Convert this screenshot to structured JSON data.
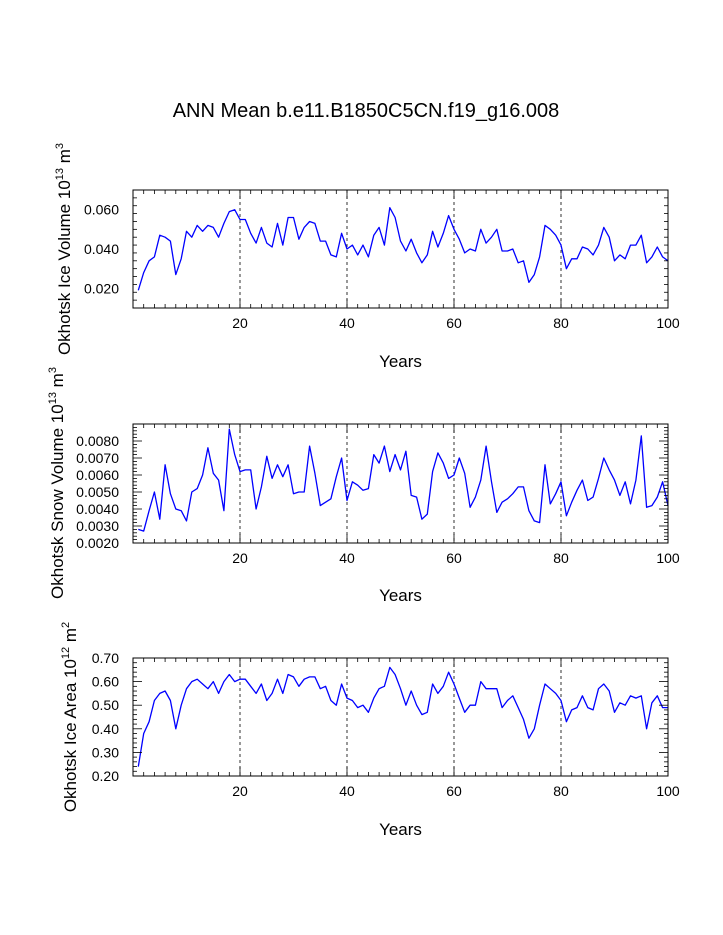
{
  "chart_data": {
    "type": "line",
    "title": "ANN Mean b.e11.B1850C5CN.f19_g16.008",
    "line_color": "#0000ff",
    "panels": [
      {
        "name": "ice-volume",
        "ylabel_main": "Okhotsk Ice Volume 10",
        "ylabel_exp": "13",
        "ylabel_unit": " m",
        "ylabel_unit_exp": "3",
        "xlabel": "Years",
        "xlim": [
          0,
          100
        ],
        "ylim": [
          0.01,
          0.07
        ],
        "xticks": [
          20,
          40,
          60,
          80,
          100
        ],
        "xtick_labels": [
          "20",
          "40",
          "60",
          "80",
          "100"
        ],
        "yticks": [
          0.02,
          0.04,
          0.06
        ],
        "ytick_labels": [
          "0.020",
          "0.040",
          "0.060"
        ],
        "grid_x": [
          20,
          40,
          60,
          80
        ],
        "x": [
          1,
          2,
          3,
          4,
          5,
          6,
          7,
          8,
          9,
          10,
          11,
          12,
          13,
          14,
          15,
          16,
          17,
          18,
          19,
          20,
          21,
          22,
          23,
          24,
          25,
          26,
          27,
          28,
          29,
          30,
          31,
          32,
          33,
          34,
          35,
          36,
          37,
          38,
          39,
          40,
          41,
          42,
          43,
          44,
          45,
          46,
          47,
          48,
          49,
          50,
          51,
          52,
          53,
          54,
          55,
          56,
          57,
          58,
          59,
          60,
          61,
          62,
          63,
          64,
          65,
          66,
          67,
          68,
          69,
          70,
          71,
          72,
          73,
          74,
          75,
          76,
          77,
          78,
          79,
          80,
          81,
          82,
          83,
          84,
          85,
          86,
          87,
          88,
          89,
          90,
          91,
          92,
          93,
          94,
          95,
          96,
          97,
          98,
          99,
          100
        ],
        "values": [
          0.019,
          0.028,
          0.034,
          0.036,
          0.047,
          0.046,
          0.044,
          0.027,
          0.035,
          0.049,
          0.046,
          0.052,
          0.049,
          0.052,
          0.051,
          0.046,
          0.053,
          0.059,
          0.06,
          0.055,
          0.055,
          0.048,
          0.043,
          0.051,
          0.043,
          0.041,
          0.053,
          0.042,
          0.056,
          0.056,
          0.045,
          0.051,
          0.054,
          0.053,
          0.044,
          0.044,
          0.037,
          0.036,
          0.048,
          0.04,
          0.042,
          0.037,
          0.042,
          0.036,
          0.047,
          0.051,
          0.042,
          0.061,
          0.056,
          0.044,
          0.039,
          0.045,
          0.038,
          0.033,
          0.037,
          0.049,
          0.041,
          0.048,
          0.057,
          0.05,
          0.045,
          0.038,
          0.04,
          0.039,
          0.05,
          0.043,
          0.046,
          0.05,
          0.039,
          0.039,
          0.04,
          0.033,
          0.034,
          0.023,
          0.027,
          0.036,
          0.052,
          0.05,
          0.047,
          0.042,
          0.03,
          0.035,
          0.035,
          0.041,
          0.04,
          0.037,
          0.042,
          0.051,
          0.046,
          0.034,
          0.037,
          0.035,
          0.042,
          0.042,
          0.047,
          0.033,
          0.036,
          0.041,
          0.036,
          0.034
        ]
      },
      {
        "name": "snow-volume",
        "ylabel_main": "Okhotsk Snow Volume 10",
        "ylabel_exp": "13",
        "ylabel_unit": " m",
        "ylabel_unit_exp": "3",
        "xlabel": "Years",
        "xlim": [
          0,
          100
        ],
        "ylim": [
          0.002,
          0.009
        ],
        "xticks": [
          20,
          40,
          60,
          80,
          100
        ],
        "xtick_labels": [
          "20",
          "40",
          "60",
          "80",
          "100"
        ],
        "yticks": [
          0.002,
          0.003,
          0.004,
          0.005,
          0.006,
          0.007,
          0.008
        ],
        "ytick_labels": [
          "0.0020",
          "0.0030",
          "0.0040",
          "0.0050",
          "0.0060",
          "0.0070",
          "0.0080"
        ],
        "grid_x": [
          20,
          40,
          60,
          80
        ],
        "x": [
          1,
          2,
          3,
          4,
          5,
          6,
          7,
          8,
          9,
          10,
          11,
          12,
          13,
          14,
          15,
          16,
          17,
          18,
          19,
          20,
          21,
          22,
          23,
          24,
          25,
          26,
          27,
          28,
          29,
          30,
          31,
          32,
          33,
          34,
          35,
          36,
          37,
          38,
          39,
          40,
          41,
          42,
          43,
          44,
          45,
          46,
          47,
          48,
          49,
          50,
          51,
          52,
          53,
          54,
          55,
          56,
          57,
          58,
          59,
          60,
          61,
          62,
          63,
          64,
          65,
          66,
          67,
          68,
          69,
          70,
          71,
          72,
          73,
          74,
          75,
          76,
          77,
          78,
          79,
          80,
          81,
          82,
          83,
          84,
          85,
          86,
          87,
          88,
          89,
          90,
          91,
          92,
          93,
          94,
          95,
          96,
          97,
          98,
          99,
          100
        ],
        "values": [
          0.0028,
          0.0027,
          0.0039,
          0.005,
          0.0034,
          0.0066,
          0.0049,
          0.004,
          0.0039,
          0.0033,
          0.005,
          0.0052,
          0.006,
          0.0076,
          0.0061,
          0.0057,
          0.0039,
          0.0087,
          0.0072,
          0.0062,
          0.0063,
          0.0063,
          0.004,
          0.0053,
          0.0071,
          0.0058,
          0.0066,
          0.0059,
          0.0066,
          0.0049,
          0.005,
          0.005,
          0.0077,
          0.0061,
          0.0042,
          0.0044,
          0.0046,
          0.0059,
          0.007,
          0.0045,
          0.0056,
          0.0054,
          0.0051,
          0.0052,
          0.0072,
          0.0067,
          0.0077,
          0.0062,
          0.0072,
          0.0063,
          0.0074,
          0.0048,
          0.0047,
          0.0034,
          0.0037,
          0.0062,
          0.0073,
          0.0067,
          0.0058,
          0.006,
          0.007,
          0.0061,
          0.0041,
          0.0047,
          0.0057,
          0.0077,
          0.0056,
          0.0038,
          0.0044,
          0.0046,
          0.0049,
          0.0053,
          0.0053,
          0.0039,
          0.0033,
          0.0032,
          0.0066,
          0.0043,
          0.0049,
          0.0056,
          0.0036,
          0.0044,
          0.0051,
          0.0057,
          0.0045,
          0.0047,
          0.0058,
          0.007,
          0.0063,
          0.0057,
          0.0048,
          0.0056,
          0.0043,
          0.0057,
          0.0083,
          0.0041,
          0.0042,
          0.0047,
          0.0056,
          0.0042
        ]
      },
      {
        "name": "ice-area",
        "ylabel_main": "Okhotsk Ice Area 10",
        "ylabel_exp": "12",
        "ylabel_unit": " m",
        "ylabel_unit_exp": "2",
        "xlabel": "Years",
        "xlim": [
          0,
          100
        ],
        "ylim": [
          0.2,
          0.7
        ],
        "xticks": [
          20,
          40,
          60,
          80,
          100
        ],
        "xtick_labels": [
          "20",
          "40",
          "60",
          "80",
          "100"
        ],
        "yticks": [
          0.2,
          0.3,
          0.4,
          0.5,
          0.6,
          0.7
        ],
        "ytick_labels": [
          "0.20",
          "0.30",
          "0.40",
          "0.50",
          "0.60",
          "0.70"
        ],
        "grid_x": [
          20,
          40,
          60,
          80
        ],
        "x": [
          1,
          2,
          3,
          4,
          5,
          6,
          7,
          8,
          9,
          10,
          11,
          12,
          13,
          14,
          15,
          16,
          17,
          18,
          19,
          20,
          21,
          22,
          23,
          24,
          25,
          26,
          27,
          28,
          29,
          30,
          31,
          32,
          33,
          34,
          35,
          36,
          37,
          38,
          39,
          40,
          41,
          42,
          43,
          44,
          45,
          46,
          47,
          48,
          49,
          50,
          51,
          52,
          53,
          54,
          55,
          56,
          57,
          58,
          59,
          60,
          61,
          62,
          63,
          64,
          65,
          66,
          67,
          68,
          69,
          70,
          71,
          72,
          73,
          74,
          75,
          76,
          77,
          78,
          79,
          80,
          81,
          82,
          83,
          84,
          85,
          86,
          87,
          88,
          89,
          90,
          91,
          92,
          93,
          94,
          95,
          96,
          97,
          98,
          99,
          100
        ],
        "values": [
          0.24,
          0.38,
          0.43,
          0.52,
          0.55,
          0.56,
          0.52,
          0.4,
          0.5,
          0.57,
          0.6,
          0.61,
          0.59,
          0.57,
          0.6,
          0.55,
          0.6,
          0.63,
          0.6,
          0.61,
          0.61,
          0.58,
          0.55,
          0.59,
          0.52,
          0.55,
          0.61,
          0.55,
          0.63,
          0.62,
          0.58,
          0.61,
          0.62,
          0.62,
          0.57,
          0.58,
          0.52,
          0.5,
          0.59,
          0.53,
          0.52,
          0.49,
          0.5,
          0.47,
          0.53,
          0.57,
          0.58,
          0.66,
          0.63,
          0.57,
          0.5,
          0.56,
          0.5,
          0.46,
          0.47,
          0.59,
          0.55,
          0.58,
          0.64,
          0.59,
          0.53,
          0.47,
          0.5,
          0.5,
          0.6,
          0.57,
          0.57,
          0.57,
          0.49,
          0.52,
          0.54,
          0.49,
          0.44,
          0.36,
          0.4,
          0.5,
          0.59,
          0.57,
          0.55,
          0.52,
          0.43,
          0.48,
          0.49,
          0.54,
          0.49,
          0.48,
          0.57,
          0.59,
          0.56,
          0.47,
          0.51,
          0.5,
          0.54,
          0.53,
          0.54,
          0.4,
          0.51,
          0.54,
          0.49,
          0.49
        ]
      }
    ]
  }
}
